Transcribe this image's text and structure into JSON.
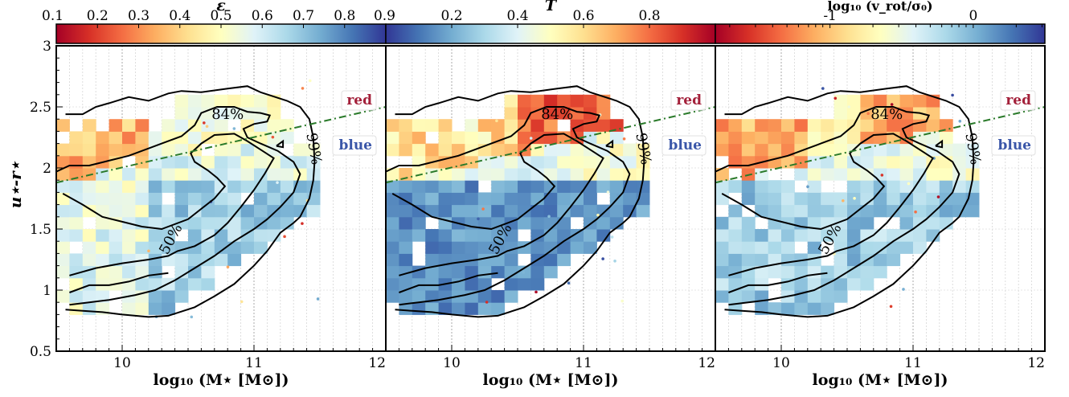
{
  "chart_data": {
    "type": "heatmap",
    "layout": "three panels sharing the y-axis, each with its own colorbar on top",
    "ylabel": "u⋆-r⋆",
    "ylim": [
      0.5,
      3
    ],
    "yticks": [
      "0.5",
      "1",
      "1.5",
      "2",
      "2.5",
      "3"
    ],
    "xlabel": "log₁₀ (M⋆ [M⊙])",
    "xlim": [
      9.5,
      12
    ],
    "xticks": [
      {
        "v": 10,
        "label": "10"
      },
      {
        "v": 11,
        "label": "11"
      },
      {
        "v": 12,
        "label": "12"
      }
    ],
    "divider_line": {
      "style": "dash-dot",
      "color": "#2a7a2a",
      "x": [
        9.5,
        12
      ],
      "y": [
        1.88,
        2.5
      ]
    },
    "region_labels": [
      {
        "text": "red",
        "color": "#a3203a",
        "position": "top-right"
      },
      {
        "text": "blue",
        "color": "#3a56a8",
        "position": "right"
      }
    ],
    "contour_labels": [
      "84%",
      "50%",
      "99%"
    ],
    "contours": [
      {
        "level": "50%",
        "lines": [
          [
            [
              9.55,
              1.79
            ],
            [
              9.7,
              1.7
            ],
            [
              9.85,
              1.6
            ],
            [
              10.0,
              1.56
            ],
            [
              10.15,
              1.52
            ],
            [
              10.3,
              1.5
            ],
            [
              10.5,
              1.58
            ],
            [
              10.7,
              1.75
            ],
            [
              10.78,
              1.85
            ],
            [
              10.72,
              1.92
            ],
            [
              10.65,
              1.98
            ],
            [
              10.55,
              2.05
            ],
            [
              10.52,
              2.12
            ],
            [
              10.6,
              2.2
            ],
            [
              10.7,
              2.27
            ],
            [
              10.85,
              2.28
            ],
            [
              10.95,
              2.22
            ],
            [
              11.05,
              2.15
            ],
            [
              11.15,
              2.08
            ],
            [
              11.08,
              1.95
            ],
            [
              11.0,
              1.82
            ],
            [
              10.9,
              1.68
            ],
            [
              10.8,
              1.55
            ],
            [
              10.7,
              1.45
            ],
            [
              10.55,
              1.36
            ],
            [
              10.42,
              1.32
            ],
            [
              10.35,
              1.28
            ],
            [
              10.2,
              1.25
            ],
            [
              10.0,
              1.22
            ],
            [
              9.8,
              1.18
            ],
            [
              9.6,
              1.12
            ]
          ],
          [
            [
              9.6,
              0.98
            ],
            [
              9.75,
              1.04
            ],
            [
              9.9,
              1.04
            ],
            [
              10.05,
              1.07
            ],
            [
              10.2,
              1.12
            ],
            [
              10.35,
              1.14
            ]
          ]
        ]
      },
      {
        "level": "84%",
        "lines": [
          [
            [
              9.5,
              1.97
            ],
            [
              9.6,
              2.02
            ],
            [
              9.75,
              2.02
            ],
            [
              9.9,
              2.06
            ],
            [
              10.05,
              2.1
            ],
            [
              10.2,
              2.16
            ],
            [
              10.3,
              2.2
            ],
            [
              10.45,
              2.26
            ],
            [
              10.55,
              2.35
            ],
            [
              10.6,
              2.45
            ],
            [
              10.72,
              2.5
            ],
            [
              10.85,
              2.5
            ],
            [
              10.95,
              2.46
            ],
            [
              11.05,
              2.45
            ],
            [
              11.12,
              2.43
            ],
            [
              11.1,
              2.38
            ],
            [
              11.0,
              2.36
            ],
            [
              10.92,
              2.32
            ],
            [
              10.95,
              2.25
            ],
            [
              11.05,
              2.2
            ],
            [
              11.18,
              2.14
            ],
            [
              11.3,
              2.05
            ],
            [
              11.35,
              1.95
            ],
            [
              11.3,
              1.8
            ],
            [
              11.2,
              1.68
            ],
            [
              11.1,
              1.58
            ],
            [
              11.0,
              1.5
            ],
            [
              10.85,
              1.4
            ],
            [
              10.7,
              1.28
            ],
            [
              10.55,
              1.18
            ],
            [
              10.4,
              1.08
            ],
            [
              10.25,
              1.0
            ],
            [
              10.1,
              0.96
            ],
            [
              9.9,
              0.92
            ],
            [
              9.75,
              0.9
            ],
            [
              9.6,
              0.88
            ]
          ]
        ]
      },
      {
        "level": "99%",
        "lines": [
          [
            [
              9.57,
              0.84
            ],
            [
              9.7,
              0.83
            ],
            [
              9.85,
              0.82
            ],
            [
              10.0,
              0.8
            ],
            [
              10.2,
              0.78
            ],
            [
              10.35,
              0.79
            ],
            [
              10.55,
              0.86
            ],
            [
              10.7,
              0.95
            ],
            [
              10.85,
              1.05
            ],
            [
              11.0,
              1.2
            ],
            [
              11.1,
              1.32
            ],
            [
              11.2,
              1.47
            ],
            [
              11.3,
              1.55
            ],
            [
              11.35,
              1.6
            ],
            [
              11.42,
              1.75
            ],
            [
              11.45,
              1.9
            ],
            [
              11.46,
              2.05
            ],
            [
              11.45,
              2.25
            ],
            [
              11.42,
              2.4
            ],
            [
              11.35,
              2.5
            ],
            [
              11.25,
              2.55
            ],
            [
              11.05,
              2.62
            ],
            [
              10.95,
              2.67
            ],
            [
              10.8,
              2.65
            ],
            [
              10.6,
              2.62
            ],
            [
              10.45,
              2.63
            ],
            [
              10.35,
              2.61
            ],
            [
              10.2,
              2.55
            ],
            [
              10.05,
              2.58
            ],
            [
              9.9,
              2.53
            ],
            [
              9.8,
              2.5
            ],
            [
              9.7,
              2.44
            ],
            [
              9.57,
              2.44
            ]
          ],
          [
            [
              11.17,
              2.18
            ],
            [
              11.22,
              2.22
            ],
            [
              11.22,
              2.17
            ],
            [
              11.17,
              2.18
            ]
          ]
        ]
      }
    ],
    "panels": [
      {
        "colorbar": {
          "label": "ε",
          "range": [
            0.1,
            0.9
          ],
          "ticks": [
            "0.1",
            "0.2",
            "0.3",
            "0.4",
            "0.5",
            "0.6",
            "0.7",
            "0.8",
            "0.9"
          ],
          "tick_values": [
            0.1,
            0.2,
            0.3,
            0.4,
            0.5,
            0.6,
            0.7,
            0.8,
            0.9
          ],
          "scale": "linear",
          "cmap": "RdYlBu"
        },
        "heatmap_grid": {
          "x_edges": [
            9.5,
            12.0
          ],
          "x_step": 0.1,
          "y_edges": [
            0.7,
            2.6
          ],
          "y_step": 0.1,
          "value_rule": "low (red/orange) where u-r above the green line at low mass, high (blue) in the blue cloud, mid otherwise"
        },
        "scatter_points": 18
      },
      {
        "colorbar": {
          "label": "T",
          "range": [
            0.0,
            1.0
          ],
          "ticks": [
            "0.2",
            "0.4",
            "0.6",
            "0.8"
          ],
          "tick_values": [
            0.2,
            0.4,
            0.6,
            0.8
          ],
          "scale": "linear",
          "cmap": "RdYlBu_r"
        },
        "heatmap_grid": {
          "x_edges": [
            9.5,
            12.0
          ],
          "x_step": 0.1,
          "y_edges": [
            0.7,
            2.6
          ],
          "y_step": 0.1,
          "value_rule": "low (blue) in the blue cloud, high (red/orange) at high mass in the red sequence"
        },
        "scatter_points": 18
      },
      {
        "colorbar": {
          "label": "log₁₀ (v_rot/σ₀)",
          "range": [
            -1.8,
            0.5
          ],
          "ticks": [
            "-1",
            "0"
          ],
          "tick_values": [
            -1,
            0
          ],
          "scale": "linear",
          "cmap": "RdYlBu"
        },
        "heatmap_grid": {
          "x_edges": [
            9.5,
            12.0
          ],
          "x_step": 0.1,
          "y_edges": [
            0.7,
            2.6
          ],
          "y_step": 0.1,
          "value_rule": "low (red) in the red sequence, high (blue) in the blue cloud"
        },
        "scatter_points": 18
      }
    ]
  },
  "ylabel_text": "u⋆-r⋆",
  "xlabel_text": "log₁₀ (M⋆ [M⊙])",
  "cb_labels": [
    "ε",
    "T",
    "log₁₀ (v_rot/σ₀)"
  ]
}
